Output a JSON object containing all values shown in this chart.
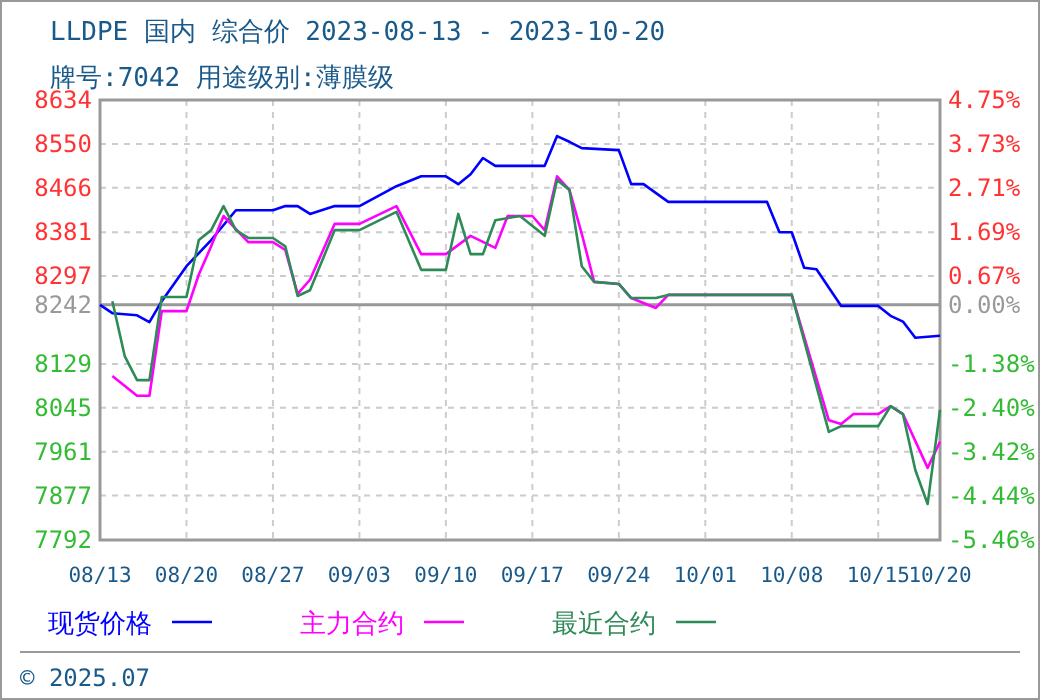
{
  "chart_data": {
    "type": "line",
    "title": "LLDPE 国内 综合价 2023-08-13 - 2023-10-20",
    "subtitle": "牌号:7042 用途级别:薄膜级",
    "annotations": [
      "© 2025.07"
    ],
    "xlim": [
      "2023-08-13",
      "2023-10-20"
    ],
    "xticks": [
      {
        "value": "2023-08-13",
        "label": "08/13"
      },
      {
        "value": "2023-08-20",
        "label": "08/20"
      },
      {
        "value": "2023-08-27",
        "label": "08/27"
      },
      {
        "value": "2023-09-03",
        "label": "09/03"
      },
      {
        "value": "2023-09-10",
        "label": "09/10"
      },
      {
        "value": "2023-09-17",
        "label": "09/17"
      },
      {
        "value": "2023-09-24",
        "label": "09/24"
      },
      {
        "value": "2023-10-01",
        "label": "10/01"
      },
      {
        "value": "2023-10-08",
        "label": "10/08"
      },
      {
        "value": "2023-10-15",
        "label": "10/15"
      },
      {
        "value": "2023-10-20",
        "label": "10/20"
      }
    ],
    "ylim": [
      7792,
      8634
    ],
    "yticks": [
      7792,
      7877,
      7961,
      8045,
      8129,
      8242,
      8297,
      8381,
      8466,
      8550,
      8634
    ],
    "y2lim": [
      -5.46,
      4.75
    ],
    "y2ticks": [
      {
        "value": -5.46,
        "label": "-5.46%"
      },
      {
        "value": -4.44,
        "label": "-4.44%"
      },
      {
        "value": -3.42,
        "label": "-3.42%"
      },
      {
        "value": -2.4,
        "label": "-2.40%"
      },
      {
        "value": -1.38,
        "label": "-1.38%"
      },
      {
        "value": 0,
        "label": "0.00%"
      },
      {
        "value": 0.67,
        "label": "0.67%"
      },
      {
        "value": 1.69,
        "label": "1.69%"
      },
      {
        "value": 2.71,
        "label": "2.71%"
      },
      {
        "value": 3.73,
        "label": "3.73%"
      },
      {
        "value": 4.75,
        "label": "4.75%"
      }
    ],
    "ref_lines": [
      {
        "axis": "y",
        "value": 8242,
        "color": "#999999"
      }
    ],
    "grid": true,
    "legend": "bottom",
    "line_style": "solid",
    "series": [
      {
        "name": "现货价格",
        "color": "#0000ff",
        "x": [
          "2023-08-13",
          "2023-08-14",
          "2023-08-16",
          "2023-08-17",
          "2023-08-18",
          "2023-08-20",
          "2023-08-22",
          "2023-08-24",
          "2023-08-27",
          "2023-08-28",
          "2023-08-29",
          "2023-08-30",
          "2023-09-01",
          "2023-09-03",
          "2023-09-06",
          "2023-09-08",
          "2023-09-10",
          "2023-09-11",
          "2023-09-12",
          "2023-09-13",
          "2023-09-14",
          "2023-09-16",
          "2023-09-18",
          "2023-09-19",
          "2023-09-20",
          "2023-09-21",
          "2023-09-24",
          "2023-09-25",
          "2023-09-26",
          "2023-09-28",
          "2023-10-06",
          "2023-10-07",
          "2023-10-08",
          "2023-10-09",
          "2023-10-10",
          "2023-10-12",
          "2023-10-15",
          "2023-10-16",
          "2023-10-17",
          "2023-10-18",
          "2023-10-20"
        ],
        "values": [
          8242,
          8226,
          8222,
          8209,
          8249,
          8316,
          8366,
          8423,
          8423,
          8431,
          8431,
          8416,
          8431,
          8431,
          8469,
          8488,
          8488,
          8473,
          8492,
          8523,
          8508,
          8508,
          8508,
          8565,
          8554,
          8542,
          8538,
          8473,
          8473,
          8439,
          8439,
          8381,
          8381,
          8313,
          8310,
          8240,
          8240,
          8221,
          8210,
          8179,
          8183
        ]
      },
      {
        "name": "主力合约",
        "color": "#ff00ff",
        "x": [
          "2023-08-14",
          "2023-08-16",
          "2023-08-17",
          "2023-08-18",
          "2023-08-20",
          "2023-08-21",
          "2023-08-22",
          "2023-08-23",
          "2023-08-25",
          "2023-08-27",
          "2023-08-28",
          "2023-08-29",
          "2023-08-30",
          "2023-09-01",
          "2023-09-03",
          "2023-09-06",
          "2023-09-08",
          "2023-09-10",
          "2023-09-12",
          "2023-09-14",
          "2023-09-15",
          "2023-09-17",
          "2023-09-18",
          "2023-09-19",
          "2023-09-20",
          "2023-09-21",
          "2023-09-22",
          "2023-09-24",
          "2023-09-25",
          "2023-09-27",
          "2023-09-28",
          "2023-10-08",
          "2023-10-11",
          "2023-10-12",
          "2023-10-13",
          "2023-10-15",
          "2023-10-16",
          "2023-10-17",
          "2023-10-19",
          "2023-10-20"
        ],
        "values": [
          8106,
          8068,
          8068,
          8230,
          8230,
          8300,
          8354,
          8412,
          8362,
          8362,
          8347,
          8263,
          8290,
          8397,
          8397,
          8431,
          8339,
          8339,
          8374,
          8351,
          8412,
          8412,
          8385,
          8488,
          8462,
          8378,
          8286,
          8282,
          8255,
          8236,
          8261,
          8261,
          8021,
          8014,
          8033,
          8033,
          8048,
          8033,
          7930,
          7980
        ]
      },
      {
        "name": "最近合约",
        "color": "#2e8b57",
        "x": [
          "2023-08-14",
          "2023-08-15",
          "2023-08-16",
          "2023-08-17",
          "2023-08-18",
          "2023-08-20",
          "2023-08-21",
          "2023-08-22",
          "2023-08-23",
          "2023-08-24",
          "2023-08-25",
          "2023-08-27",
          "2023-08-28",
          "2023-08-29",
          "2023-08-30",
          "2023-09-01",
          "2023-09-03",
          "2023-09-06",
          "2023-09-08",
          "2023-09-10",
          "2023-09-11",
          "2023-09-12",
          "2023-09-13",
          "2023-09-14",
          "2023-09-16",
          "2023-09-18",
          "2023-09-19",
          "2023-09-20",
          "2023-09-21",
          "2023-09-22",
          "2023-09-24",
          "2023-09-25",
          "2023-09-27",
          "2023-09-28",
          "2023-10-08",
          "2023-10-11",
          "2023-10-12",
          "2023-10-15",
          "2023-10-16",
          "2023-10-17",
          "2023-10-18",
          "2023-10-19",
          "2023-10-20"
        ],
        "values": [
          8249,
          8144,
          8098,
          8098,
          8257,
          8257,
          8366,
          8385,
          8431,
          8385,
          8370,
          8370,
          8354,
          8259,
          8270,
          8385,
          8385,
          8420,
          8309,
          8309,
          8416,
          8339,
          8339,
          8404,
          8412,
          8374,
          8481,
          8462,
          8316,
          8286,
          8282,
          8255,
          8255,
          8261,
          8261,
          7999,
          8010,
          8010,
          8048,
          8033,
          7926,
          7861,
          8041
        ]
      }
    ]
  }
}
